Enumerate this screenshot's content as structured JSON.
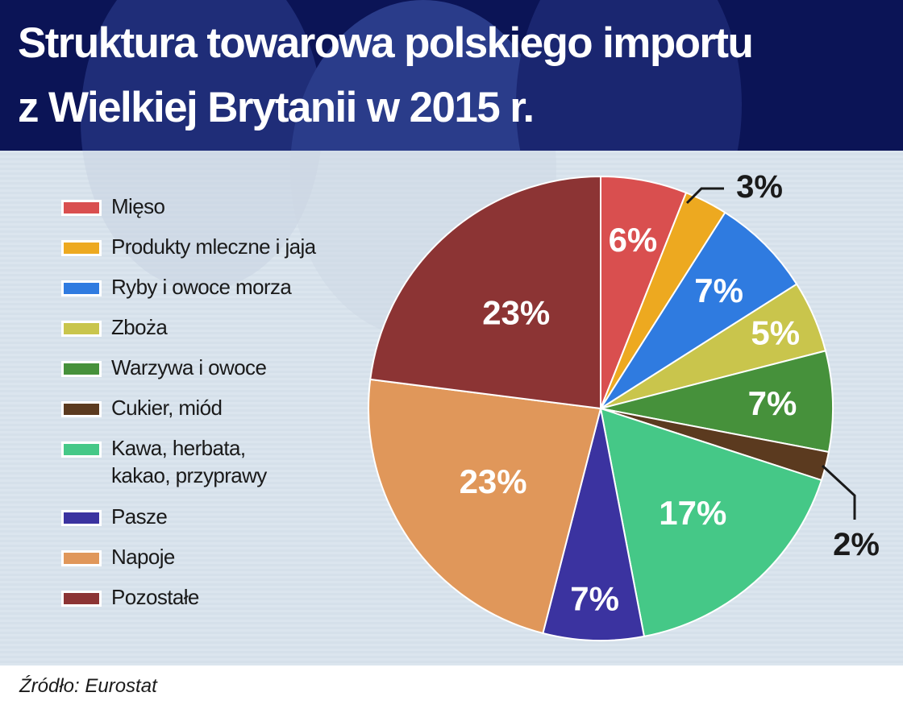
{
  "title": {
    "line1": "Struktura towarowa polskiego importu",
    "line2": "z Wielkiej Brytanii w 2015 r."
  },
  "source": "Źródło: Eurostat",
  "colors": {
    "header_bg": "#0b1456",
    "slice_stroke": "#ffffff"
  },
  "chart_data": {
    "type": "pie",
    "title": "Struktura towarowa polskiego importu z Wielkiej Brytanii w 2015 r.",
    "legend_position": "left",
    "start": "top, clockwise",
    "slices": [
      {
        "name": "Mięso",
        "value": 6,
        "label": "6%",
        "color": "#d94f4f"
      },
      {
        "name": "Produkty mleczne i jaja",
        "value": 3,
        "label": "3%",
        "color": "#eda920"
      },
      {
        "name": "Ryby i owoce morza",
        "value": 7,
        "label": "7%",
        "color": "#2f7be0"
      },
      {
        "name": "Zboża",
        "value": 5,
        "label": "5%",
        "color": "#c9c54c"
      },
      {
        "name": "Warzywa i owoce",
        "value": 7,
        "label": "7%",
        "color": "#46913b"
      },
      {
        "name": "Cukier, miód",
        "value": 2,
        "label": "2%",
        "color": "#5b3a1f"
      },
      {
        "name": "Kawa, herbata, kakao, przyprawy",
        "name_lines": [
          "Kawa, herbata,",
          "kakao, przyprawy"
        ],
        "value": 17,
        "label": "17%",
        "color": "#45c887"
      },
      {
        "name": "Pasze",
        "value": 7,
        "label": "7%",
        "color": "#3b33a0"
      },
      {
        "name": "Napoje",
        "value": 23,
        "label": "23%",
        "color": "#e0975a"
      },
      {
        "name": "Pozostałe",
        "value": 23,
        "label": "23%",
        "color": "#8c3434"
      }
    ]
  }
}
